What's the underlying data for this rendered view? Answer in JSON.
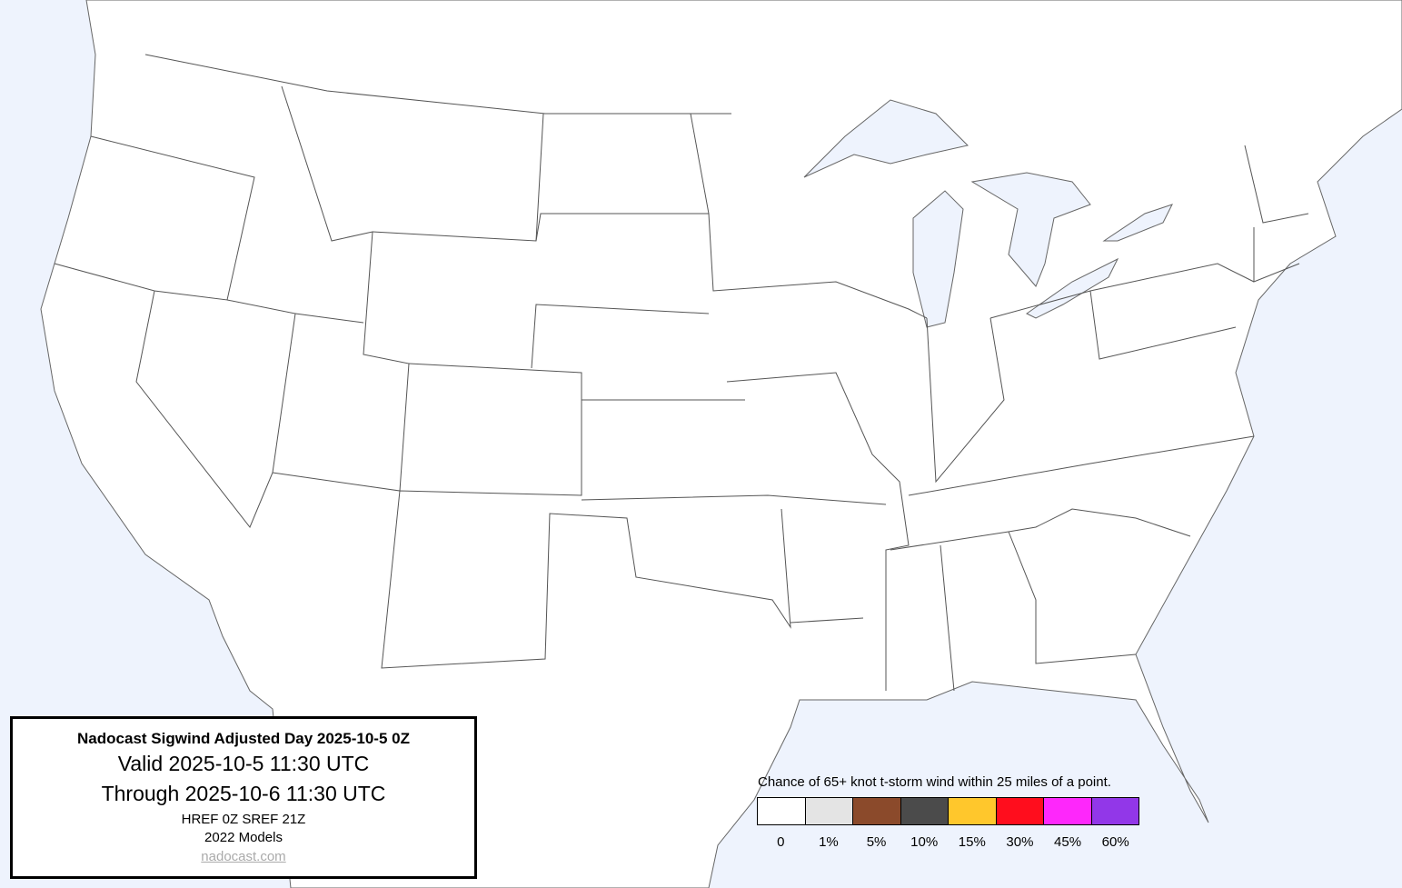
{
  "info_box": {
    "title": "Nadocast Sigwind Adjusted Day 2025-10-5 0Z",
    "valid": "Valid 2025-10-5 11:30 UTC",
    "through": "Through 2025-10-6 11:30 UTC",
    "models_run": "HREF 0Z SREF 21Z",
    "models_version": "2022 Models",
    "link": "nadocast.com"
  },
  "legend": {
    "title": "Chance of 65+ knot t-storm wind within 25 miles of a point.",
    "bins": [
      {
        "label": "0",
        "color": "#ffffff"
      },
      {
        "label": "1%",
        "color": "#e4e4e4"
      },
      {
        "label": "5%",
        "color": "#8b4a2b"
      },
      {
        "label": "10%",
        "color": "#4b4b4b"
      },
      {
        "label": "15%",
        "color": "#ffc72c"
      },
      {
        "label": "30%",
        "color": "#ff0d1d"
      },
      {
        "label": "45%",
        "color": "#fe27fb"
      },
      {
        "label": "60%",
        "color": "#9237e8"
      }
    ]
  },
  "map": {
    "water_color": "#eef3fd",
    "land_color": "#ffffff",
    "border_color": "#555555",
    "forecast_areas": []
  }
}
